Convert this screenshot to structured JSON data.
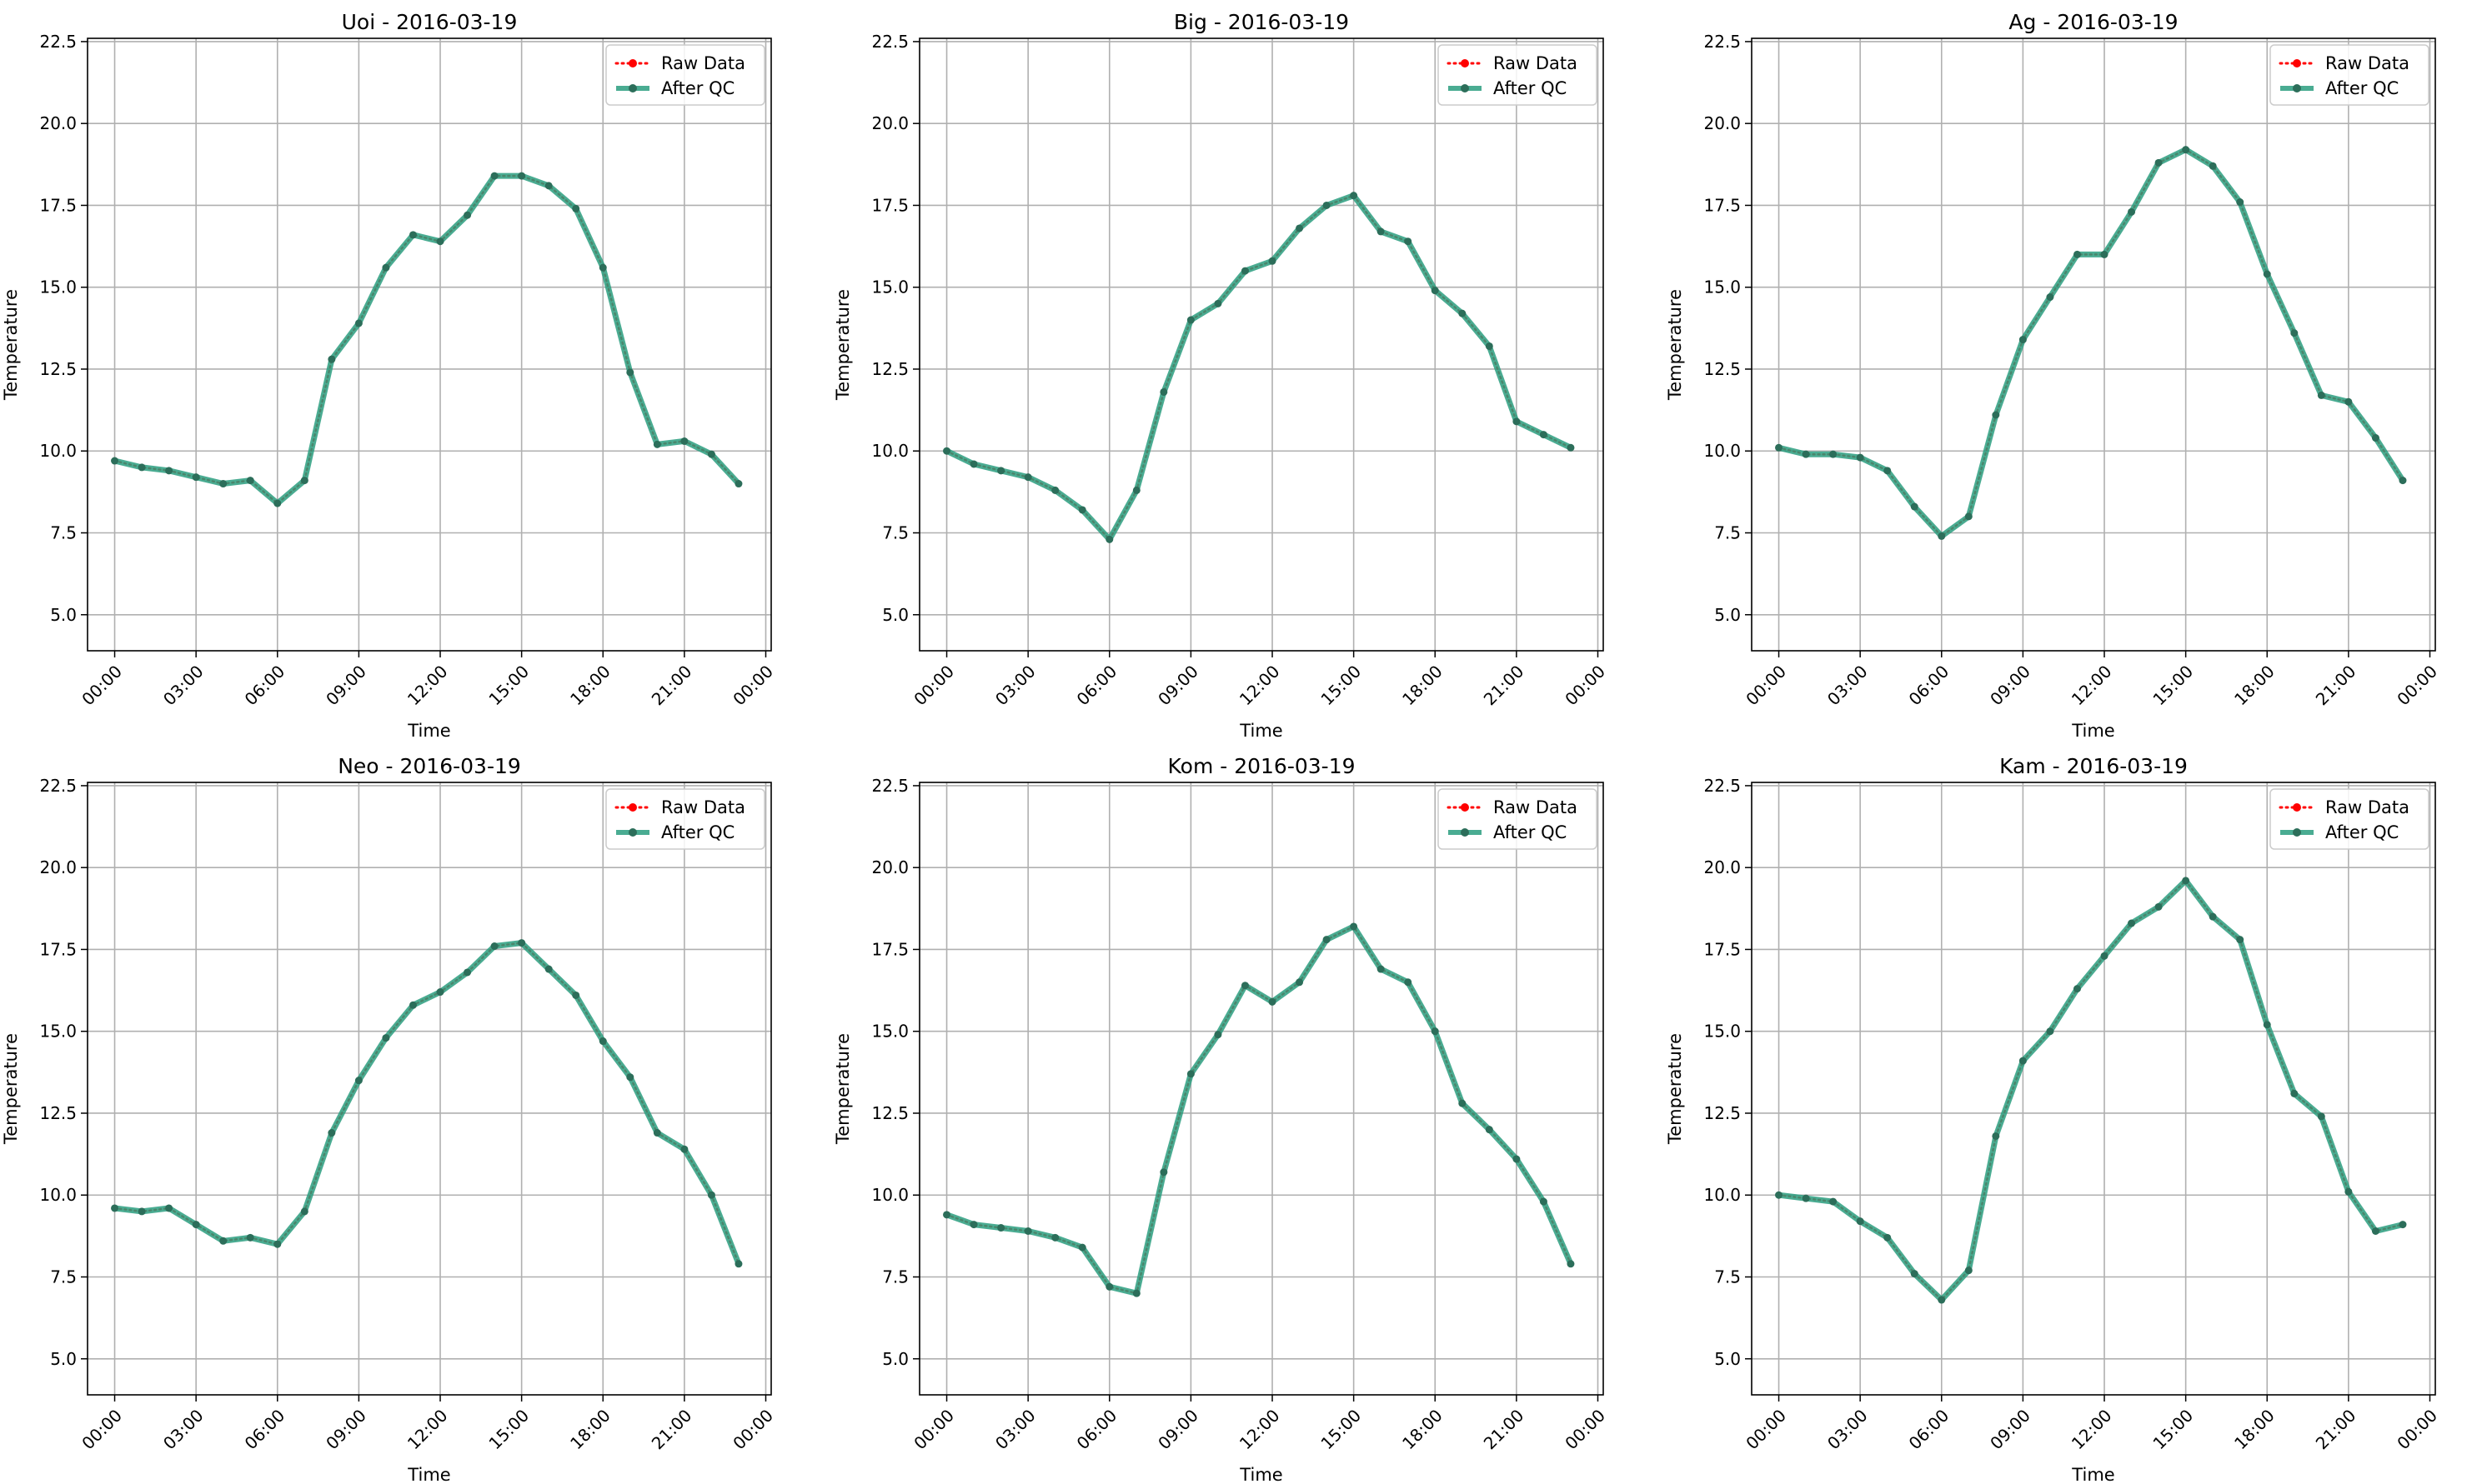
{
  "chart_data": [
    {
      "type": "line",
      "title": "Uoi - 2016-03-19",
      "xlabel": "Time",
      "ylabel": "Temperature",
      "ylim": [
        3.9,
        22.6
      ],
      "y_ticks": [
        "5.0",
        "7.5",
        "10.0",
        "12.5",
        "15.0",
        "17.5",
        "20.0",
        "22.5"
      ],
      "x_ticks": [
        "00:00",
        "03:00",
        "06:00",
        "09:00",
        "12:00",
        "15:00",
        "18:00",
        "21:00",
        "00:00"
      ],
      "x_hours": [
        0,
        1,
        2,
        3,
        4,
        5,
        6,
        7,
        8,
        9,
        10,
        11,
        12,
        13,
        14,
        15,
        16,
        17,
        18,
        19,
        20,
        21,
        22,
        23
      ],
      "legend": "top-right",
      "grid": true,
      "series": [
        {
          "name": "Raw Data",
          "color": "#ff0000",
          "style": "dotted",
          "values": [
            9.7,
            9.5,
            9.4,
            9.2,
            9.0,
            9.1,
            8.4,
            9.1,
            12.8,
            13.9,
            15.6,
            16.6,
            16.4,
            17.2,
            18.4,
            18.4,
            18.1,
            17.4,
            15.6,
            12.4,
            10.2,
            10.3,
            9.9,
            9.0
          ]
        },
        {
          "name": "After QC",
          "color": "#2a9d7f",
          "style": "solid",
          "values": [
            9.7,
            9.5,
            9.4,
            9.2,
            9.0,
            9.1,
            8.4,
            9.1,
            12.8,
            13.9,
            15.6,
            16.6,
            16.4,
            17.2,
            18.4,
            18.4,
            18.1,
            17.4,
            15.6,
            12.4,
            10.2,
            10.3,
            9.9,
            9.0
          ]
        }
      ]
    },
    {
      "type": "line",
      "title": "Big - 2016-03-19",
      "xlabel": "Time",
      "ylabel": "Temperature",
      "ylim": [
        3.9,
        22.6
      ],
      "y_ticks": [
        "5.0",
        "7.5",
        "10.0",
        "12.5",
        "15.0",
        "17.5",
        "20.0",
        "22.5"
      ],
      "x_ticks": [
        "00:00",
        "03:00",
        "06:00",
        "09:00",
        "12:00",
        "15:00",
        "18:00",
        "21:00",
        "00:00"
      ],
      "x_hours": [
        0,
        1,
        2,
        3,
        4,
        5,
        6,
        7,
        8,
        9,
        10,
        11,
        12,
        13,
        14,
        15,
        16,
        17,
        18,
        19,
        20,
        21,
        22,
        23
      ],
      "legend": "top-right",
      "grid": true,
      "series": [
        {
          "name": "Raw Data",
          "color": "#ff0000",
          "style": "dotted",
          "values": [
            10.0,
            9.6,
            9.4,
            9.2,
            8.8,
            8.2,
            7.3,
            8.8,
            11.8,
            14.0,
            14.5,
            15.5,
            15.8,
            16.8,
            17.5,
            17.8,
            16.7,
            16.4,
            14.9,
            14.2,
            13.2,
            10.9,
            10.5,
            10.1
          ]
        },
        {
          "name": "After QC",
          "color": "#2a9d7f",
          "style": "solid",
          "values": [
            10.0,
            9.6,
            9.4,
            9.2,
            8.8,
            8.2,
            7.3,
            8.8,
            11.8,
            14.0,
            14.5,
            15.5,
            15.8,
            16.8,
            17.5,
            17.8,
            16.7,
            16.4,
            14.9,
            14.2,
            13.2,
            10.9,
            10.5,
            10.1
          ]
        }
      ]
    },
    {
      "type": "line",
      "title": "Ag - 2016-03-19",
      "xlabel": "Time",
      "ylabel": "Temperature",
      "ylim": [
        3.9,
        22.6
      ],
      "y_ticks": [
        "5.0",
        "7.5",
        "10.0",
        "12.5",
        "15.0",
        "17.5",
        "20.0",
        "22.5"
      ],
      "x_ticks": [
        "00:00",
        "03:00",
        "06:00",
        "09:00",
        "12:00",
        "15:00",
        "18:00",
        "21:00",
        "00:00"
      ],
      "x_hours": [
        0,
        1,
        2,
        3,
        4,
        5,
        6,
        7,
        8,
        9,
        10,
        11,
        12,
        13,
        14,
        15,
        16,
        17,
        18,
        19,
        20,
        21,
        22,
        23
      ],
      "legend": "top-right",
      "grid": true,
      "series": [
        {
          "name": "Raw Data",
          "color": "#ff0000",
          "style": "dotted",
          "values": [
            10.1,
            9.9,
            9.9,
            9.8,
            9.4,
            8.3,
            7.4,
            8.0,
            11.1,
            13.4,
            14.7,
            16.0,
            16.0,
            17.3,
            18.8,
            19.2,
            18.7,
            17.6,
            15.4,
            13.6,
            11.7,
            11.5,
            10.4,
            9.1
          ]
        },
        {
          "name": "After QC",
          "color": "#2a9d7f",
          "style": "solid",
          "values": [
            10.1,
            9.9,
            9.9,
            9.8,
            9.4,
            8.3,
            7.4,
            8.0,
            11.1,
            13.4,
            14.7,
            16.0,
            16.0,
            17.3,
            18.8,
            19.2,
            18.7,
            17.6,
            15.4,
            13.6,
            11.7,
            11.5,
            10.4,
            9.1
          ]
        }
      ]
    },
    {
      "type": "line",
      "title": "Neo - 2016-03-19",
      "xlabel": "Time",
      "ylabel": "Temperature",
      "ylim": [
        3.9,
        22.6
      ],
      "y_ticks": [
        "5.0",
        "7.5",
        "10.0",
        "12.5",
        "15.0",
        "17.5",
        "20.0",
        "22.5"
      ],
      "x_ticks": [
        "00:00",
        "03:00",
        "06:00",
        "09:00",
        "12:00",
        "15:00",
        "18:00",
        "21:00",
        "00:00"
      ],
      "x_hours": [
        0,
        1,
        2,
        3,
        4,
        5,
        6,
        7,
        8,
        9,
        10,
        11,
        12,
        13,
        14,
        15,
        16,
        17,
        18,
        19,
        20,
        21,
        22,
        23
      ],
      "legend": "top-right",
      "grid": true,
      "series": [
        {
          "name": "Raw Data",
          "color": "#ff0000",
          "style": "dotted",
          "values": [
            9.6,
            9.5,
            9.6,
            9.1,
            8.6,
            8.7,
            8.5,
            9.5,
            11.9,
            13.5,
            14.8,
            15.8,
            16.2,
            16.8,
            17.6,
            17.7,
            16.9,
            16.1,
            14.7,
            13.6,
            11.9,
            11.4,
            10.0,
            7.9
          ]
        },
        {
          "name": "After QC",
          "color": "#2a9d7f",
          "style": "solid",
          "values": [
            9.6,
            9.5,
            9.6,
            9.1,
            8.6,
            8.7,
            8.5,
            9.5,
            11.9,
            13.5,
            14.8,
            15.8,
            16.2,
            16.8,
            17.6,
            17.7,
            16.9,
            16.1,
            14.7,
            13.6,
            11.9,
            11.4,
            10.0,
            7.9
          ]
        }
      ]
    },
    {
      "type": "line",
      "title": "Kom - 2016-03-19",
      "xlabel": "Time",
      "ylabel": "Temperature",
      "ylim": [
        3.9,
        22.6
      ],
      "y_ticks": [
        "5.0",
        "7.5",
        "10.0",
        "12.5",
        "15.0",
        "17.5",
        "20.0",
        "22.5"
      ],
      "x_ticks": [
        "00:00",
        "03:00",
        "06:00",
        "09:00",
        "12:00",
        "15:00",
        "18:00",
        "21:00",
        "00:00"
      ],
      "x_hours": [
        0,
        1,
        2,
        3,
        4,
        5,
        6,
        7,
        8,
        9,
        10,
        11,
        12,
        13,
        14,
        15,
        16,
        17,
        18,
        19,
        20,
        21,
        22,
        23
      ],
      "legend": "top-right",
      "grid": true,
      "series": [
        {
          "name": "Raw Data",
          "color": "#ff0000",
          "style": "dotted",
          "values": [
            9.4,
            9.1,
            9.0,
            8.9,
            8.7,
            8.4,
            7.2,
            7.0,
            10.7,
            13.7,
            14.9,
            16.4,
            15.9,
            16.5,
            17.8,
            18.2,
            16.9,
            16.5,
            15.0,
            12.8,
            12.0,
            11.1,
            9.8,
            7.9
          ]
        },
        {
          "name": "After QC",
          "color": "#2a9d7f",
          "style": "solid",
          "values": [
            9.4,
            9.1,
            9.0,
            8.9,
            8.7,
            8.4,
            7.2,
            7.0,
            10.7,
            13.7,
            14.9,
            16.4,
            15.9,
            16.5,
            17.8,
            18.2,
            16.9,
            16.5,
            15.0,
            12.8,
            12.0,
            11.1,
            9.8,
            7.9
          ]
        }
      ]
    },
    {
      "type": "line",
      "title": "Kam - 2016-03-19",
      "xlabel": "Time",
      "ylabel": "Temperature",
      "ylim": [
        3.9,
        22.6
      ],
      "y_ticks": [
        "5.0",
        "7.5",
        "10.0",
        "12.5",
        "15.0",
        "17.5",
        "20.0",
        "22.5"
      ],
      "x_ticks": [
        "00:00",
        "03:00",
        "06:00",
        "09:00",
        "12:00",
        "15:00",
        "18:00",
        "21:00",
        "00:00"
      ],
      "x_hours": [
        0,
        1,
        2,
        3,
        4,
        5,
        6,
        7,
        8,
        9,
        10,
        11,
        12,
        13,
        14,
        15,
        16,
        17,
        18,
        19,
        20,
        21,
        22,
        23
      ],
      "legend": "top-right",
      "grid": true,
      "series": [
        {
          "name": "Raw Data",
          "color": "#ff0000",
          "style": "dotted",
          "values": [
            10.0,
            9.9,
            9.8,
            9.2,
            8.7,
            7.6,
            6.8,
            7.7,
            11.8,
            14.1,
            15.0,
            16.3,
            17.3,
            18.3,
            18.8,
            19.6,
            18.5,
            17.8,
            15.2,
            13.1,
            12.4,
            10.1,
            8.9,
            9.1
          ]
        },
        {
          "name": "After QC",
          "color": "#2a9d7f",
          "style": "solid",
          "values": [
            10.0,
            9.9,
            9.8,
            9.2,
            8.7,
            7.6,
            6.8,
            7.7,
            11.8,
            14.1,
            15.0,
            16.3,
            17.3,
            18.3,
            18.8,
            19.6,
            18.5,
            17.8,
            15.2,
            13.1,
            12.4,
            10.1,
            8.9,
            9.1
          ]
        }
      ]
    }
  ]
}
